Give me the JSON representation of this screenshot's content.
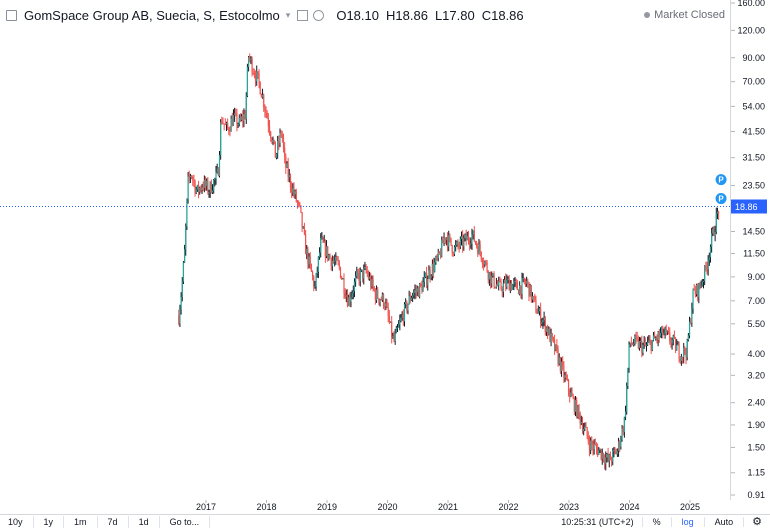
{
  "header": {
    "title": "GomSpace Group AB, Suecia, S, Estocolmo",
    "ohlc": [
      {
        "key": "O",
        "value": "18.10"
      },
      {
        "key": "H",
        "value": "18.86"
      },
      {
        "key": "L",
        "value": "17.80"
      },
      {
        "key": "C",
        "value": "18.86"
      }
    ],
    "market_status": "Market Closed"
  },
  "chart_data": {
    "type": "candlestick",
    "scale": "log",
    "up_color": "#26a69a",
    "down_color": "#ef5350",
    "last_price": 18.86,
    "last_price_label": "18.86",
    "last_price_color": "#2962ff",
    "price_line_style": "dotted",
    "y_ticks": [
      "160.00",
      "120.00",
      "90.00",
      "70.00",
      "54.00",
      "41.50",
      "31.50",
      "23.50",
      "18.86",
      "14.50",
      "11.50",
      "9.00",
      "7.00",
      "5.50",
      "4.00",
      "3.20",
      "2.40",
      "1.90",
      "1.50",
      "1.15",
      "0.91"
    ],
    "x_ticks": [
      "2017",
      "2018",
      "2019",
      "2020",
      "2021",
      "2022",
      "2023",
      "2024",
      "2025"
    ],
    "series_path": [
      [
        "2016.55",
        6.0
      ],
      [
        "2016.60",
        8.0
      ],
      [
        "2016.65",
        12.0
      ],
      [
        "2016.70",
        24.0
      ],
      [
        "2016.75",
        27.0
      ],
      [
        "2016.85",
        22.0
      ],
      [
        "2016.95",
        24.0
      ],
      [
        "2017.05",
        22.5
      ],
      [
        "2017.15",
        25.0
      ],
      [
        "2017.20",
        27.0
      ],
      [
        "2017.25",
        48.0
      ],
      [
        "2017.35",
        42.0
      ],
      [
        "2017.45",
        48.0
      ],
      [
        "2017.55",
        45.0
      ],
      [
        "2017.65",
        50.0
      ],
      [
        "2017.70",
        92.0
      ],
      [
        "2017.80",
        78.0
      ],
      [
        "2017.90",
        66.0
      ],
      [
        "2018.00",
        50.0
      ],
      [
        "2018.10",
        38.0
      ],
      [
        "2018.15",
        32.0
      ],
      [
        "2018.25",
        42.0
      ],
      [
        "2018.30",
        30.0
      ],
      [
        "2018.40",
        24.0
      ],
      [
        "2018.55",
        18.0
      ],
      [
        "2018.65",
        12.0
      ],
      [
        "2018.80",
        8.0
      ],
      [
        "2018.90",
        13.0
      ],
      [
        "2019.05",
        11.0
      ],
      [
        "2019.20",
        10.0
      ],
      [
        "2019.35",
        7.0
      ],
      [
        "2019.50",
        9.0
      ],
      [
        "2019.65",
        9.5
      ],
      [
        "2019.80",
        7.5
      ],
      [
        "2019.95",
        7.0
      ],
      [
        "2020.10",
        4.5
      ],
      [
        "2020.25",
        6.0
      ],
      [
        "2020.40",
        7.5
      ],
      [
        "2020.55",
        8.0
      ],
      [
        "2020.70",
        9.5
      ],
      [
        "2020.85",
        11.0
      ],
      [
        "2020.95",
        14.0
      ],
      [
        "2021.10",
        12.0
      ],
      [
        "2021.25",
        13.0
      ],
      [
        "2021.40",
        14.0
      ],
      [
        "2021.55",
        11.5
      ],
      [
        "2021.70",
        9.0
      ],
      [
        "2021.85",
        8.0
      ],
      [
        "2022.00",
        8.5
      ],
      [
        "2022.15",
        8.0
      ],
      [
        "2022.30",
        8.5
      ],
      [
        "2022.45",
        6.5
      ],
      [
        "2022.60",
        5.5
      ],
      [
        "2022.80",
        4.0
      ],
      [
        "2022.95",
        3.0
      ],
      [
        "2023.05",
        2.5
      ],
      [
        "2023.20",
        2.0
      ],
      [
        "2023.35",
        1.55
      ],
      [
        "2023.50",
        1.45
      ],
      [
        "2023.65",
        1.3
      ],
      [
        "2023.80",
        1.45
      ],
      [
        "2023.92",
        2.0
      ],
      [
        "2024.00",
        4.5
      ],
      [
        "2024.10",
        4.5
      ],
      [
        "2024.25",
        4.3
      ],
      [
        "2024.40",
        4.6
      ],
      [
        "2024.55",
        5.0
      ],
      [
        "2024.70",
        4.6
      ],
      [
        "2024.85",
        4.0
      ],
      [
        "2024.95",
        4.2
      ],
      [
        "2025.05",
        7.5
      ],
      [
        "2025.15",
        8.0
      ],
      [
        "2025.25",
        9.5
      ],
      [
        "2025.35",
        13.0
      ],
      [
        "2025.48",
        18.8
      ]
    ],
    "markers": [
      {
        "label": "P",
        "x": "2025.48",
        "y": 25.0
      },
      {
        "label": "P",
        "x": "2025.48",
        "y": 20.5
      }
    ]
  },
  "footer": {
    "timeframes": [
      "10y",
      "1y",
      "1m",
      "7d",
      "1d",
      "Go to..."
    ],
    "clock": "10:25:31 (UTC+2)",
    "percent": "%",
    "log": "log",
    "auto": "Auto"
  }
}
